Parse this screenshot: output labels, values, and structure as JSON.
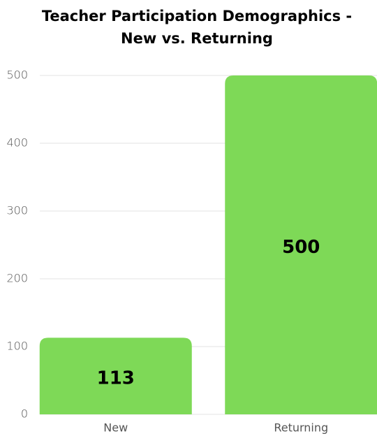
{
  "chart_data": {
    "type": "bar",
    "title": [
      "Teacher Participation Demographics -",
      "New vs. Returning"
    ],
    "categories": [
      "New",
      "Returning"
    ],
    "values": [
      113,
      500
    ],
    "color": "#7ed957",
    "ylim": [
      0,
      500
    ],
    "yticks": [
      0,
      100,
      200,
      300,
      400,
      500
    ],
    "grid": true
  }
}
